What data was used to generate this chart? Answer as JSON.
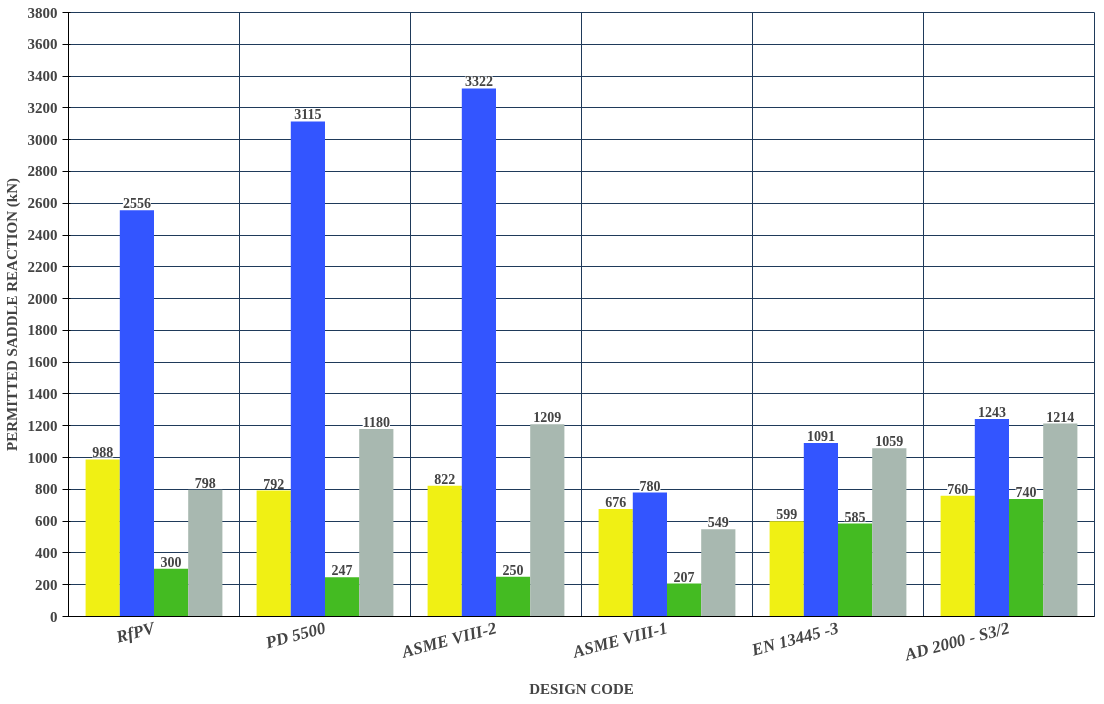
{
  "chart_data": {
    "type": "bar",
    "xlabel": "DESIGN CODE",
    "ylabel": "PERMITTED SADDLE REACTION (kN)",
    "categories": [
      "RfPV",
      "PD 5500",
      "ASME VIII-2",
      "ASME VIII-1",
      "EN 13445 -3",
      "AD 2000 - S3/2"
    ],
    "series": [
      {
        "color": "#f0f014",
        "values": [
          988,
          792,
          822,
          676,
          599,
          760
        ]
      },
      {
        "color": "#3355ff",
        "values": [
          2556,
          3115,
          3322,
          780,
          1091,
          1243
        ]
      },
      {
        "color": "#44bb22",
        "values": [
          300,
          247,
          250,
          207,
          585,
          740
        ]
      },
      {
        "color": "#a8b8b0",
        "values": [
          798,
          1180,
          1209,
          549,
          1059,
          1214
        ]
      }
    ],
    "ylim": [
      0,
      3800
    ],
    "yticks": [
      0,
      200,
      400,
      600,
      800,
      1000,
      1200,
      1400,
      1600,
      1800,
      2000,
      2200,
      2400,
      2600,
      2800,
      3000,
      3200,
      3400,
      3600,
      3800
    ],
    "grid": true,
    "data_labels": true
  }
}
